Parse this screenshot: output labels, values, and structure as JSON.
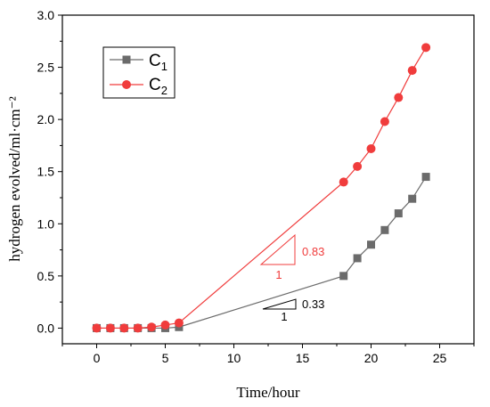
{
  "chart_data": {
    "type": "line",
    "xlabel": "Time/hour",
    "ylabel": "hydrogen evolved/ml·cm⁻²",
    "xlim": [
      -2.5,
      27.5
    ],
    "ylim": [
      -0.15,
      3.0
    ],
    "xticks": [
      0,
      5,
      10,
      15,
      20,
      25
    ],
    "yticks": [
      0.0,
      0.5,
      1.0,
      1.5,
      2.0,
      2.5,
      3.0
    ],
    "ytick_labels": [
      "0.0",
      "0.5",
      "1.0",
      "1.5",
      "2.0",
      "2.5",
      "3.0"
    ],
    "legend_position": "top-left",
    "series": [
      {
        "legend_main": "C",
        "legend_sub": "1",
        "color": "#6b6b6b",
        "marker": "square",
        "x": [
          0,
          1,
          2,
          3,
          4,
          5,
          6,
          18,
          19,
          20,
          21,
          22,
          23,
          24
        ],
        "y": [
          0.0,
          0.0,
          0.0,
          0.0,
          0.0,
          0.0,
          0.01,
          0.5,
          0.67,
          0.8,
          0.94,
          1.1,
          1.24,
          1.45
        ]
      },
      {
        "legend_main": "C",
        "legend_sub": "2",
        "color": "#f03c3c",
        "marker": "circle",
        "x": [
          0,
          1,
          2,
          3,
          4,
          5,
          6,
          18,
          19,
          20,
          21,
          22,
          23,
          24
        ],
        "y": [
          0.0,
          0.0,
          0.0,
          0.0,
          0.01,
          0.03,
          0.05,
          1.4,
          1.55,
          1.72,
          1.98,
          2.21,
          2.47,
          2.69
        ]
      }
    ],
    "annotations": [
      {
        "name": "slope-c2",
        "run_label": "1",
        "rise_label": "0.83",
        "color": "#f03c3c"
      },
      {
        "name": "slope-c1",
        "run_label": "1",
        "rise_label": "0.33",
        "color": "#000000"
      }
    ]
  }
}
